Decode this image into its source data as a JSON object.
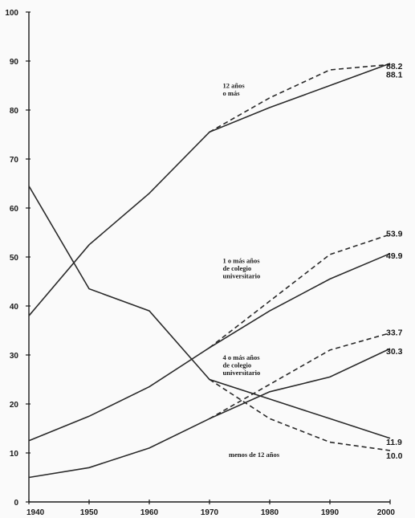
{
  "chart_data": {
    "type": "line",
    "x": [
      1940,
      1950,
      1960,
      1970,
      1980,
      1990,
      2000
    ],
    "xlim": [
      1940,
      2000
    ],
    "ylim": [
      0,
      100
    ],
    "y_ticks": [
      0,
      10,
      20,
      30,
      40,
      50,
      60,
      70,
      80,
      90,
      100
    ],
    "x_ticks": [
      1940,
      1950,
      1960,
      1970,
      1980,
      1990,
      2000
    ],
    "grid": false,
    "series": [
      {
        "name": "12 años o más",
        "label_lines": [
          "12 años",
          "o más"
        ],
        "solid": [
          [
            1940,
            38
          ],
          [
            1950,
            52.5
          ],
          [
            1960,
            63
          ],
          [
            1970,
            75.5
          ],
          [
            1980,
            80.5
          ],
          [
            1990,
            85
          ],
          [
            2000,
            89.5
          ]
        ],
        "dashed": [
          [
            1970,
            75.5
          ],
          [
            1980,
            82.5
          ],
          [
            1990,
            88.2
          ],
          [
            2000,
            89.3
          ]
        ],
        "end_labels": [
          "88.2",
          "88.1"
        ]
      },
      {
        "name": "1 o más años de colegio universitario",
        "label_lines": [
          "1 o más años",
          "de colegio",
          "universitario"
        ],
        "solid": [
          [
            1940,
            12.5
          ],
          [
            1950,
            17.5
          ],
          [
            1960,
            23.5
          ],
          [
            1970,
            31.5
          ],
          [
            1980,
            39
          ],
          [
            1990,
            45.5
          ],
          [
            2000,
            50.7
          ]
        ],
        "dashed": [
          [
            1970,
            31.5
          ],
          [
            1980,
            41
          ],
          [
            1990,
            50.5
          ],
          [
            2000,
            54.6
          ]
        ],
        "end_labels": [
          "53.9",
          "49.9"
        ]
      },
      {
        "name": "4 o más años de colegio universitario",
        "label_lines": [
          "4 o más años",
          "de colegio",
          "universitario"
        ],
        "solid": [
          [
            1940,
            5
          ],
          [
            1950,
            7
          ],
          [
            1960,
            11
          ],
          [
            1970,
            17
          ],
          [
            1980,
            22.5
          ],
          [
            1990,
            25.5
          ],
          [
            2000,
            31.3
          ]
        ],
        "dashed": [
          [
            1970,
            17
          ],
          [
            1980,
            24
          ],
          [
            1990,
            31
          ],
          [
            2000,
            34.5
          ]
        ],
        "end_labels": [
          "33.7",
          "30.3"
        ]
      },
      {
        "name": "menos de 12 años",
        "label_lines": [
          "menos de 12 años"
        ],
        "solid": [
          [
            1940,
            64.5
          ],
          [
            1950,
            43.5
          ],
          [
            1960,
            39
          ],
          [
            1970,
            25
          ],
          [
            1980,
            21
          ],
          [
            1990,
            17
          ],
          [
            2000,
            13
          ]
        ],
        "dashed": [
          [
            1970,
            25
          ],
          [
            1980,
            17
          ],
          [
            1990,
            12.2
          ],
          [
            2000,
            10.5
          ]
        ],
        "end_labels": [
          "11.9",
          "10.0"
        ]
      }
    ]
  }
}
